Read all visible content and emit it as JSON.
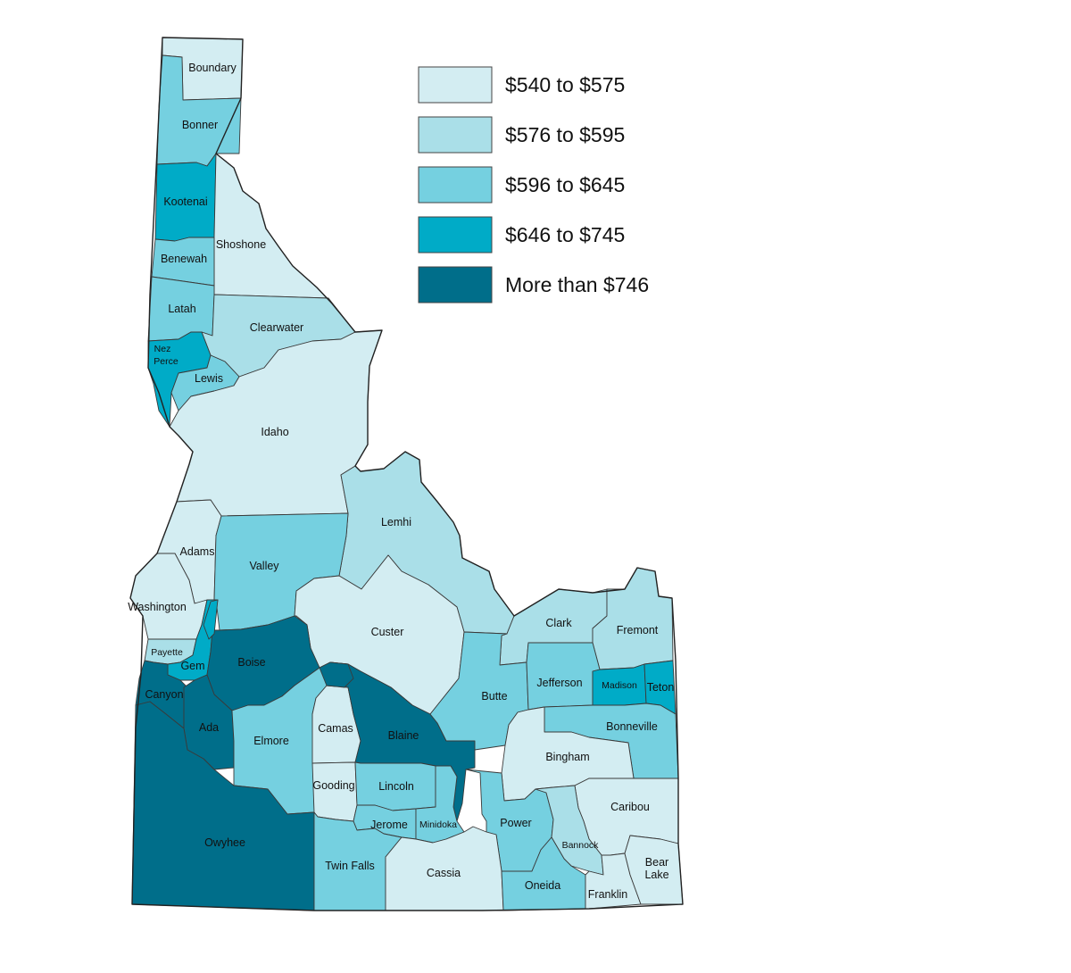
{
  "legend": [
    {
      "label": "$540 to $575",
      "color": "#d3edf2"
    },
    {
      "label": "$576 to $595",
      "color": "#aadfe8"
    },
    {
      "label": "$596 to $645",
      "color": "#75d0e0"
    },
    {
      "label": "$646 to $745",
      "color": "#00abc7"
    },
    {
      "label": "More than $746",
      "color": "#006e8a"
    }
  ],
  "counties": [
    {
      "name": "Boundary",
      "class": 0
    },
    {
      "name": "Bonner",
      "class": 2
    },
    {
      "name": "Kootenai",
      "class": 3
    },
    {
      "name": "Shoshone",
      "class": 0
    },
    {
      "name": "Benewah",
      "class": 2
    },
    {
      "name": "Latah",
      "class": 2
    },
    {
      "name": "Clearwater",
      "class": 1
    },
    {
      "name": "Nez Perce",
      "class": 3
    },
    {
      "name": "Lewis",
      "class": 2
    },
    {
      "name": "Idaho",
      "class": 0
    },
    {
      "name": "Lemhi",
      "class": 1
    },
    {
      "name": "Adams",
      "class": 0
    },
    {
      "name": "Valley",
      "class": 2
    },
    {
      "name": "Washington",
      "class": 0
    },
    {
      "name": "Custer",
      "class": 0
    },
    {
      "name": "Clark",
      "class": 1
    },
    {
      "name": "Fremont",
      "class": 1
    },
    {
      "name": "Payette",
      "class": 1
    },
    {
      "name": "Gem",
      "class": 3
    },
    {
      "name": "Boise",
      "class": 4
    },
    {
      "name": "Canyon",
      "class": 4
    },
    {
      "name": "Ada",
      "class": 4
    },
    {
      "name": "Elmore",
      "class": 2
    },
    {
      "name": "Camas",
      "class": 0
    },
    {
      "name": "Blaine",
      "class": 4
    },
    {
      "name": "Butte",
      "class": 2
    },
    {
      "name": "Jefferson",
      "class": 2
    },
    {
      "name": "Madison",
      "class": 3
    },
    {
      "name": "Teton",
      "class": 3
    },
    {
      "name": "Bonneville",
      "class": 2
    },
    {
      "name": "Bingham",
      "class": 0
    },
    {
      "name": "Owyhee",
      "class": 4
    },
    {
      "name": "Gooding",
      "class": 0
    },
    {
      "name": "Lincoln",
      "class": 2
    },
    {
      "name": "Jerome",
      "class": 2
    },
    {
      "name": "Minidoka",
      "class": 2
    },
    {
      "name": "Power",
      "class": 2
    },
    {
      "name": "Caribou",
      "class": 0
    },
    {
      "name": "Bannock",
      "class": 1
    },
    {
      "name": "Twin Falls",
      "class": 2
    },
    {
      "name": "Cassia",
      "class": 0
    },
    {
      "name": "Oneida",
      "class": 2
    },
    {
      "name": "Franklin",
      "class": 0
    },
    {
      "name": "Bear Lake",
      "class": 0
    }
  ]
}
